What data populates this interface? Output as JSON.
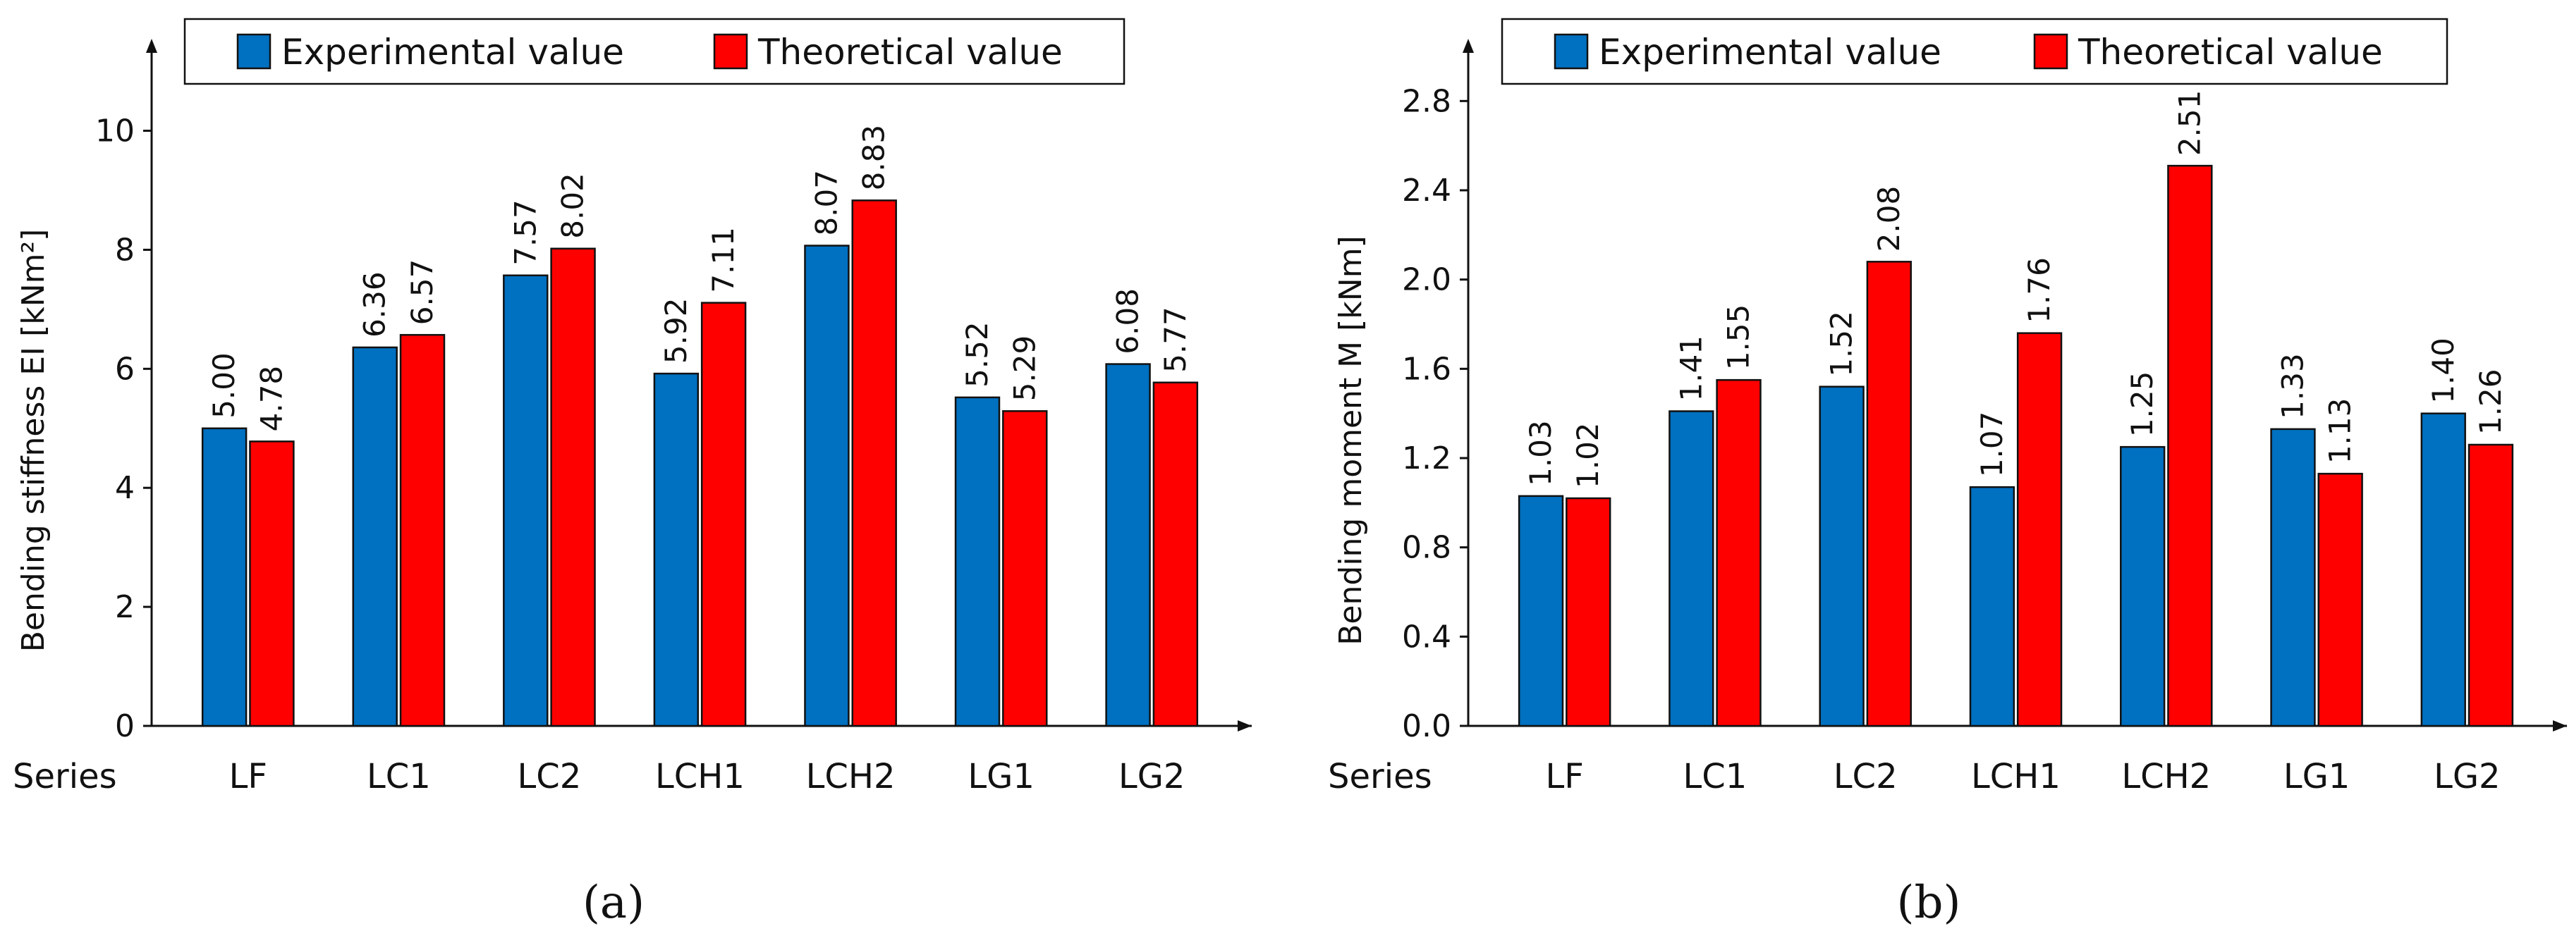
{
  "chart_data": [
    {
      "type": "bar",
      "panel_label": "(a)",
      "ylabel": "Bending stiffness EI [kNm²]",
      "xlabel": "Series",
      "categories": [
        "LF",
        "LC1",
        "LC2",
        "LCH1",
        "LCH2",
        "LG1",
        "LG2"
      ],
      "series": [
        {
          "name": "Experimental value",
          "color": "#0070C0",
          "values": [
            5.0,
            6.36,
            7.57,
            5.92,
            8.07,
            5.52,
            6.08
          ],
          "labels": [
            "5.00",
            "6.36",
            "7.57",
            "5.92",
            "8.07",
            "5.52",
            "6.08"
          ]
        },
        {
          "name": "Theoretical value",
          "color": "#FF0000",
          "values": [
            4.78,
            6.57,
            8.02,
            7.11,
            8.83,
            5.29,
            5.77
          ],
          "labels": [
            "4.78",
            "6.57",
            "8.02",
            "7.11",
            "8.83",
            "5.29",
            "5.77"
          ]
        }
      ],
      "ylim": [
        0,
        11.25
      ],
      "yticks": [
        0,
        2,
        4,
        6,
        8,
        10
      ],
      "ytick_labels": [
        "0",
        "2",
        "4",
        "6",
        "8",
        "10"
      ],
      "legend": "top"
    },
    {
      "type": "bar",
      "panel_label": "(b)",
      "ylabel": "Bending moment M [kNm]",
      "xlabel": "Series",
      "categories": [
        "LF",
        "LC1",
        "LC2",
        "LCH1",
        "LCH2",
        "LG1",
        "LG2"
      ],
      "series": [
        {
          "name": "Experimental value",
          "color": "#0070C0",
          "values": [
            1.03,
            1.41,
            1.52,
            1.07,
            1.25,
            1.33,
            1.4
          ],
          "labels": [
            "1.03",
            "1.41",
            "1.52",
            "1.07",
            "1.25",
            "1.33",
            "1.40"
          ]
        },
        {
          "name": "Theoretical value",
          "color": "#FF0000",
          "values": [
            1.02,
            1.55,
            2.08,
            1.76,
            2.51,
            1.13,
            1.26
          ],
          "labels": [
            "1.02",
            "1.55",
            "2.08",
            "1.76",
            "2.51",
            "1.13",
            "1.26"
          ]
        }
      ],
      "ylim": [
        0,
        3.0
      ],
      "yticks": [
        0,
        0.4,
        0.8,
        1.2,
        1.6,
        2.0,
        2.4,
        2.8
      ],
      "ytick_labels": [
        "0.0",
        "0.4",
        "0.8",
        "1.2",
        "1.6",
        "2.0",
        "2.4",
        "2.8"
      ],
      "legend": "top"
    }
  ]
}
